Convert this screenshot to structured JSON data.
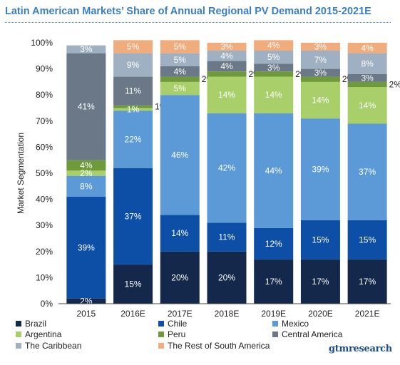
{
  "title": "Latin American Markets’ Share of Annual Regional PV Demand 2015-2021E",
  "brand": "gtmresearch",
  "chart_data": {
    "type": "bar",
    "stacked": true,
    "title": "Latin American Markets’ Share of Annual Regional PV Demand 2015-2021E",
    "xlabel": "",
    "ylabel": "Market Segmentation",
    "ylim": [
      0,
      100
    ],
    "yticks": [
      "0%",
      "10%",
      "20%",
      "30%",
      "40%",
      "50%",
      "60%",
      "70%",
      "80%",
      "90%",
      "100%"
    ],
    "grid": false,
    "legend_position": "bottom",
    "categories": [
      "2015",
      "2016E",
      "2017E",
      "2018E",
      "2019E",
      "2020E",
      "2021E"
    ],
    "series": [
      {
        "name": "Brazil",
        "color": "#14284b",
        "values": [
          2,
          15,
          20,
          20,
          17,
          17,
          17
        ],
        "labels": [
          "2%",
          "15%",
          "20%",
          "20%",
          "17%",
          "17%",
          "17%"
        ]
      },
      {
        "name": "Chile",
        "color": "#0d4ea6",
        "values": [
          39,
          37,
          14,
          11,
          12,
          15,
          15
        ],
        "labels": [
          "39%",
          "37%",
          "14%",
          "11%",
          "12%",
          "15%",
          "15%"
        ]
      },
      {
        "name": "Mexico",
        "color": "#5b9ad6",
        "values": [
          8,
          22,
          46,
          42,
          44,
          39,
          37
        ],
        "labels": [
          "8%",
          "22%",
          "46%",
          "42%",
          "44%",
          "39%",
          "37%"
        ]
      },
      {
        "name": "Argentina",
        "color": "#a9cf6a",
        "values": [
          2,
          1,
          5,
          14,
          14,
          14,
          14
        ],
        "labels": [
          "2%",
          "1%",
          "5%",
          "14%",
          "14%",
          "14%",
          "14%"
        ]
      },
      {
        "name": "Peru",
        "color": "#6f9a3a",
        "values": [
          4,
          1,
          2,
          2,
          2,
          2,
          2
        ],
        "labels": [
          "4%",
          "1%",
          "2%",
          "2%",
          "2%",
          "2%",
          "2%"
        ]
      },
      {
        "name": "Central America",
        "color": "#6b7887",
        "values": [
          41,
          11,
          4,
          4,
          3,
          3,
          3
        ],
        "labels": [
          "41%",
          "11%",
          "4%",
          "4%",
          "3%",
          "3%",
          "3%"
        ]
      },
      {
        "name": "The Caribbean",
        "color": "#9fb0c2",
        "values": [
          3,
          9,
          5,
          4,
          5,
          7,
          8
        ],
        "labels": [
          "3%",
          "9%",
          "5%",
          "4%",
          "5%",
          "7%",
          "8%"
        ]
      },
      {
        "name": "The Rest of South America",
        "color": "#f0ac7c",
        "values": [
          0,
          5,
          5,
          3,
          4,
          3,
          4
        ],
        "labels": [
          "",
          "5%",
          "5%",
          "3%",
          "4%",
          "3%",
          "4%"
        ]
      }
    ]
  }
}
